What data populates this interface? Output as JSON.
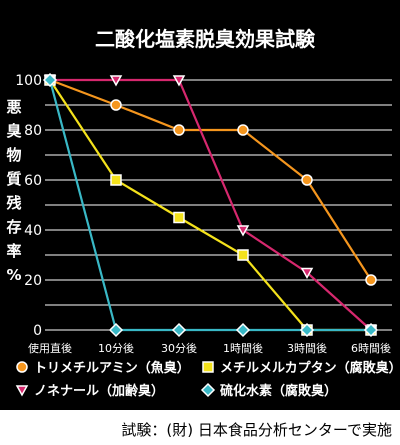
{
  "chart_data": {
    "type": "line",
    "title": "二酸化塩素脱臭効果試験",
    "ylabel": "悪臭物質残存率%",
    "ylabel_chars": [
      "悪",
      "臭",
      "物",
      "質",
      "残",
      "存",
      "率",
      "%"
    ],
    "categories": [
      "使用直後",
      "10分後",
      "30分後",
      "1時間後",
      "3時間後",
      "6時間後"
    ],
    "ylim": [
      0,
      100
    ],
    "yticks": [
      "0",
      "20",
      "40",
      "60",
      "80",
      "100"
    ],
    "grid": true,
    "legend_position": "bottom",
    "series": [
      {
        "name": "トリメチルアミン（魚臭）",
        "marker": "circle",
        "color": "#f5961e",
        "values": [
          100,
          90,
          80,
          80,
          60,
          20
        ]
      },
      {
        "name": "メチルメルカプタン（腐敗臭）",
        "marker": "square",
        "color": "#f4e21c",
        "values": [
          100,
          60,
          45,
          30,
          0,
          0
        ]
      },
      {
        "name": "ノネナール（加齢臭）",
        "marker": "triangle",
        "color": "#d6286e",
        "values": [
          100,
          100,
          100,
          40,
          23,
          0
        ]
      },
      {
        "name": "硫化水素（腐敗臭）",
        "marker": "diamond",
        "color": "#39b8c6",
        "values": [
          100,
          0,
          0,
          0,
          0,
          0
        ]
      }
    ]
  },
  "footer": {
    "credit": "試験：(財) 日本食品分析センターで実施"
  }
}
